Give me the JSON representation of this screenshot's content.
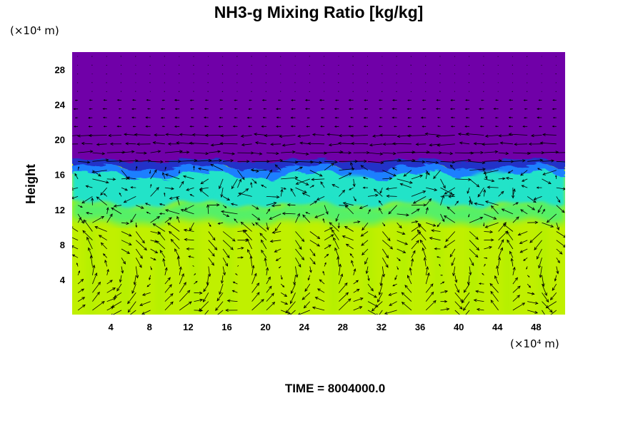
{
  "chart_data": {
    "type": "heatmap",
    "title": "NH3-g Mixing Ratio [kg/kg]",
    "ylabel": "Height",
    "xlabel": "",
    "y_unit": "(×10⁴ m)",
    "x_unit": "(×10⁴ m)",
    "time_label": "TIME = 8004000.0",
    "xlim": [
      0,
      51
    ],
    "ylim": [
      0,
      30
    ],
    "x_ticks": [
      4,
      8,
      12,
      16,
      20,
      24,
      28,
      32,
      36,
      40,
      44,
      48
    ],
    "y_ticks": [
      4,
      8,
      12,
      16,
      20,
      24,
      28
    ],
    "x_tick_labels": [
      "4",
      "8",
      "12",
      "16",
      "20",
      "24",
      "28",
      "32",
      "36",
      "40",
      "44",
      "48"
    ],
    "y_tick_labels": [
      "4",
      "8",
      "12",
      "16",
      "20",
      "24",
      "28"
    ],
    "grid": false,
    "colors": {
      "upper": "#7000a8",
      "transition": "#2030c8",
      "blue": "#1f7fff",
      "cyan": "#23e3c8",
      "green": "#55f068",
      "lower": "#c0f000",
      "lower_alt": "#a8f000"
    },
    "regions": [
      {
        "name": "upper",
        "y0": 17.0,
        "y1": 30,
        "color": "#7000a8"
      },
      {
        "name": "transition",
        "y0": 16.0,
        "y1": 17.5,
        "color": "#2030c8"
      },
      {
        "name": "cyan",
        "y0": 12.5,
        "y1": 16.5,
        "color": "#23e3c8"
      },
      {
        "name": "green",
        "y0": 10.5,
        "y1": 12.5,
        "color": "#55f068"
      },
      {
        "name": "lower",
        "y0": 0,
        "y1": 10.5,
        "color": "#c0f000"
      }
    ],
    "vectors": {
      "grid_dx": 1.5,
      "grid_dy": 1.0,
      "color": "#000000"
    }
  }
}
